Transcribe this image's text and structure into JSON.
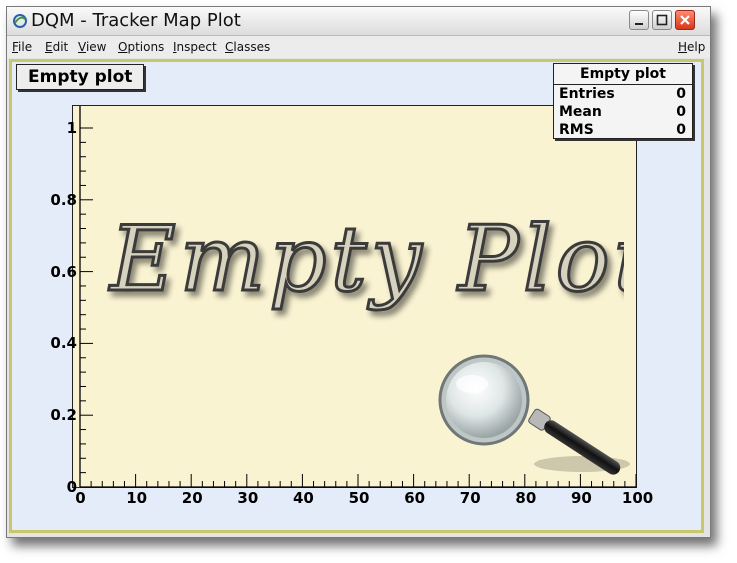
{
  "window": {
    "title": "DQM - Tracker Map Plot"
  },
  "menu": {
    "items": [
      "File",
      "Edit",
      "View",
      "Options",
      "Inspect",
      "Classes"
    ],
    "help": "Help"
  },
  "plot": {
    "title": "Empty plot",
    "watermark": "Empty Plot",
    "stats": {
      "title": "Empty plot",
      "rows": [
        {
          "label": "Entries",
          "value": "0"
        },
        {
          "label": "Mean",
          "value": "0"
        },
        {
          "label": "RMS",
          "value": "0"
        }
      ]
    }
  },
  "chart_data": {
    "type": "scatter",
    "title": "Empty plot",
    "x": [],
    "y": [],
    "xlim": [
      0,
      100
    ],
    "ylim": [
      0,
      1
    ],
    "x_ticks": [
      "0",
      "10",
      "20",
      "30",
      "40",
      "50",
      "60",
      "70",
      "80",
      "90",
      "100"
    ],
    "y_ticks": [
      "0",
      "0.2",
      "0.4",
      "0.6",
      "0.8",
      "1"
    ],
    "grid": false,
    "legend": "top-right",
    "colors": {
      "plot_fill": "#faf3d2",
      "pad_fill": "#e4ecfa"
    }
  }
}
